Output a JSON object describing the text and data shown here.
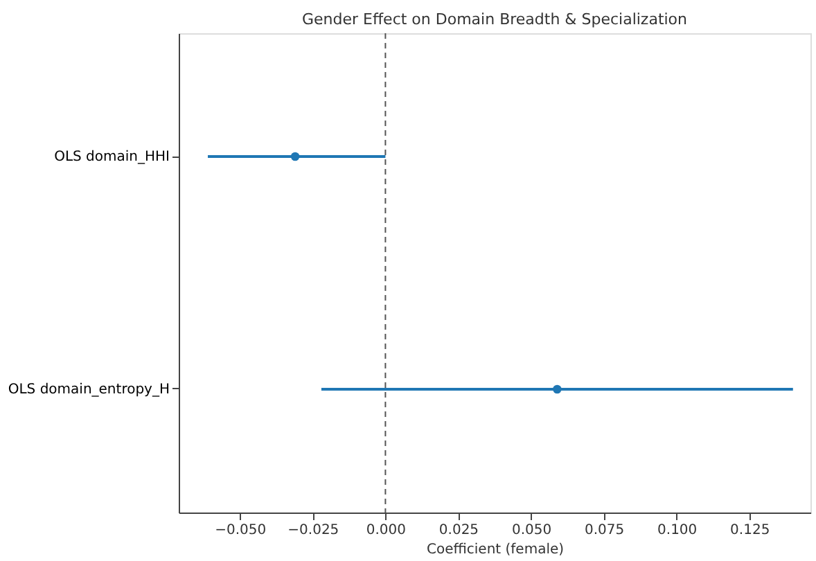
{
  "chart_data": {
    "type": "scatter",
    "orientation": "horizontal",
    "title": "Gender Effect on Domain Breadth & Specialization",
    "xlabel": "Coefficient (female)",
    "categories": [
      "OLS domain_HHI",
      "OLS domain_entropy_H"
    ],
    "series": [
      {
        "color": "#1f77b4",
        "values": [
          -0.031,
          0.059
        ],
        "errors": [
          [
            -0.061,
            0.0
          ],
          [
            -0.022,
            0.14
          ]
        ]
      }
    ],
    "marker": "circle",
    "xlim": [
      -0.071,
      0.146
    ],
    "xticks": [
      {
        "value": -0.05,
        "label": "−0.050"
      },
      {
        "value": -0.025,
        "label": "−0.025"
      },
      {
        "value": 0,
        "label": "0.000"
      },
      {
        "value": 0.025,
        "label": "0.025"
      },
      {
        "value": 0.05,
        "label": "0.050"
      },
      {
        "value": 0.075,
        "label": "0.075"
      },
      {
        "value": 0.1,
        "label": "0.100"
      },
      {
        "value": 0.125,
        "label": "0.125"
      }
    ],
    "ref_lines": [
      {
        "axis": "x",
        "value": 0,
        "color": "#555555",
        "line_style": "dashed"
      }
    ],
    "grid": false
  }
}
